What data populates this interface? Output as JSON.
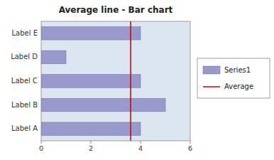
{
  "chart_data": {
    "type": "bar",
    "orientation": "horizontal",
    "title": "Average line - Bar chart",
    "categories": [
      "Label A",
      "Label B",
      "Label C",
      "Label D",
      "Label E"
    ],
    "series": [
      {
        "name": "Series1",
        "color": "#9999cc",
        "values": [
          4,
          5,
          4,
          1,
          4
        ]
      }
    ],
    "average": {
      "name": "Average",
      "value": 3.6,
      "color": "#cc0000"
    },
    "xlim": [
      0,
      6
    ],
    "xticks": [
      0,
      2,
      4,
      6
    ],
    "grid": false,
    "legend": "right"
  }
}
